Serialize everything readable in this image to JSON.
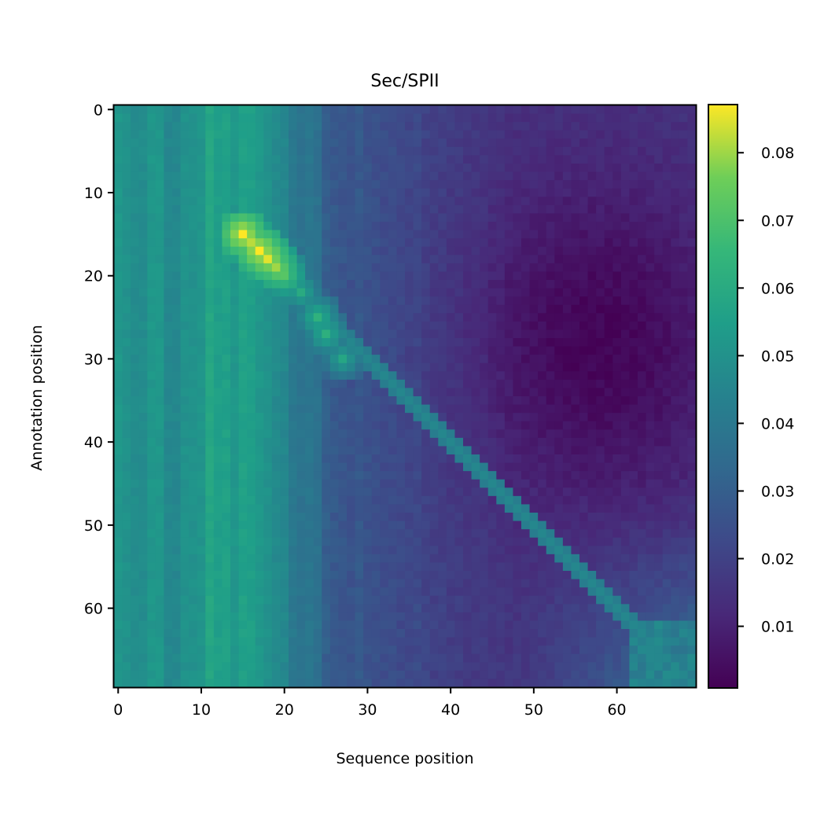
{
  "chart_data": {
    "type": "heatmap",
    "title": "Sec/SPII",
    "xlabel": "Sequence position",
    "ylabel": "Annotation position",
    "n_cols": 70,
    "n_rows": 70,
    "x_ticks": [
      0,
      10,
      20,
      30,
      40,
      50,
      60
    ],
    "y_ticks": [
      0,
      10,
      20,
      30,
      40,
      50,
      60
    ],
    "y_axis_inverted": true,
    "colormap": "viridis",
    "colorbar": {
      "min": 0.001,
      "max": 0.087,
      "ticks": [
        0.01,
        0.02,
        0.03,
        0.04,
        0.05,
        0.06,
        0.07,
        0.08
      ],
      "tick_labels": [
        "0.01",
        "0.02",
        "0.03",
        "0.04",
        "0.05",
        "0.06",
        "0.07",
        "0.08"
      ]
    },
    "column_baseline": [
      0.052,
      0.05,
      0.048,
      0.048,
      0.052,
      0.052,
      0.046,
      0.046,
      0.05,
      0.05,
      0.051,
      0.058,
      0.055,
      0.056,
      0.052,
      0.056,
      0.055,
      0.052,
      0.05,
      0.047,
      0.046,
      0.04,
      0.038,
      0.039,
      0.037,
      0.03,
      0.028,
      0.027,
      0.026,
      0.028,
      0.026,
      0.025,
      0.024,
      0.024,
      0.023,
      0.022,
      0.023,
      0.021,
      0.02,
      0.02,
      0.019,
      0.019,
      0.018,
      0.018,
      0.018,
      0.017,
      0.017,
      0.016,
      0.016,
      0.016,
      0.016,
      0.016,
      0.016,
      0.016,
      0.016,
      0.016,
      0.016,
      0.016,
      0.016,
      0.016,
      0.016,
      0.016,
      0.016,
      0.016,
      0.016,
      0.016,
      0.016,
      0.016,
      0.016,
      0.016
    ],
    "hotspots": [
      {
        "col": 15,
        "row": 15,
        "value": 0.087
      },
      {
        "col": 16,
        "row": 16,
        "value": 0.082
      },
      {
        "col": 17,
        "row": 17,
        "value": 0.087
      },
      {
        "col": 18,
        "row": 18,
        "value": 0.085
      },
      {
        "col": 19,
        "row": 19,
        "value": 0.08
      },
      {
        "col": 20,
        "row": 20,
        "value": 0.072
      },
      {
        "col": 22,
        "row": 22,
        "value": 0.06
      },
      {
        "col": 24,
        "row": 25,
        "value": 0.063
      },
      {
        "col": 25,
        "row": 27,
        "value": 0.062
      },
      {
        "col": 27,
        "row": 30,
        "value": 0.058
      }
    ],
    "diagonal_value": 0.046,
    "bottom_right_value": 0.048
  },
  "colors": {
    "axis": "#000000",
    "background": "#ffffff"
  }
}
